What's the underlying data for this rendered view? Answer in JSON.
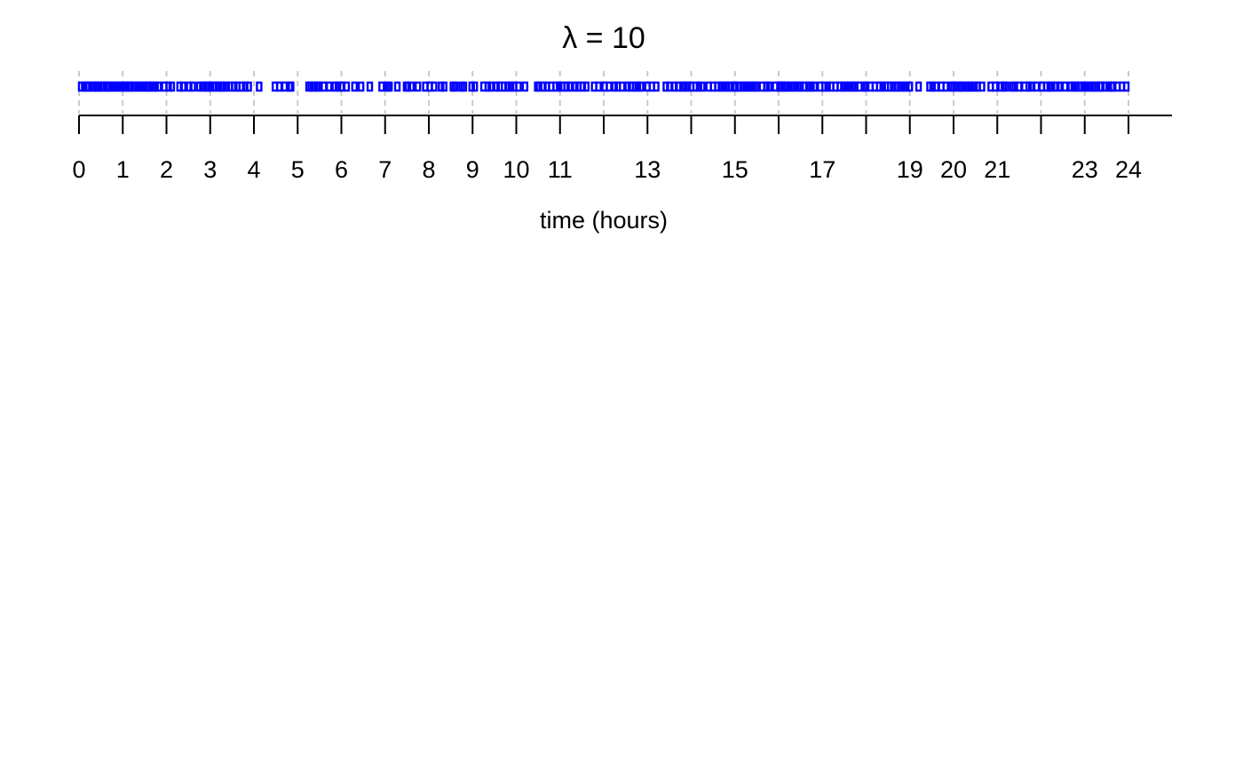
{
  "chart_data": {
    "type": "scatter",
    "title": "λ = 10",
    "xlabel": "time (hours)",
    "xlim": [
      0,
      25
    ],
    "tick_values": [
      0,
      1,
      2,
      3,
      4,
      5,
      6,
      7,
      8,
      9,
      10,
      11,
      12,
      13,
      14,
      15,
      16,
      17,
      18,
      19,
      20,
      21,
      22,
      23,
      24
    ],
    "tick_labels": [
      "0",
      "1",
      "2",
      "3",
      "4",
      "5",
      "6",
      "7",
      "8",
      "9",
      "10",
      "11",
      "",
      "13",
      "",
      "15",
      "",
      "17",
      "",
      "19",
      "20",
      "21",
      "",
      "23",
      "24"
    ],
    "vertical_gridlines": true,
    "marker_color": "#0000ff",
    "series": [
      {
        "x": [
          0.05,
          0.12,
          0.18,
          0.22,
          0.3,
          0.35,
          0.4,
          0.44,
          0.52,
          0.57,
          0.63,
          0.68,
          0.75,
          0.82,
          0.88,
          0.95,
          1.02,
          1.08,
          1.15,
          1.2,
          1.28,
          1.35,
          1.42,
          1.48,
          1.55,
          1.6,
          1.68,
          1.75,
          1.82,
          1.95,
          2.05,
          2.12,
          2.3,
          2.38,
          2.52,
          2.6,
          2.75,
          2.82,
          2.9,
          2.95,
          3.02,
          3.1,
          3.18,
          3.25,
          3.3,
          3.38,
          3.45,
          3.55,
          3.62,
          3.72,
          3.8,
          3.88,
          4.12,
          4.48,
          4.58,
          4.7,
          4.82,
          4.85,
          5.25,
          5.3,
          5.38,
          5.45,
          5.5,
          5.6,
          5.72,
          5.85,
          5.92,
          6.0,
          6.12,
          6.3,
          6.45,
          6.65,
          6.92,
          7.05,
          7.1,
          7.28,
          7.48,
          7.52,
          7.6,
          7.75,
          7.92,
          8.02,
          8.12,
          8.28,
          8.35,
          8.55,
          8.6,
          8.75,
          8.8,
          8.98,
          9.05,
          9.25,
          9.35,
          9.42,
          9.55,
          9.62,
          9.72,
          9.8,
          9.88,
          9.95,
          10.05,
          10.2,
          10.48,
          10.52,
          10.62,
          10.7,
          10.8,
          10.9,
          10.98,
          11.05,
          11.15,
          11.22,
          11.35,
          11.42,
          11.52,
          11.6,
          11.78,
          11.88,
          12.02,
          12.12,
          12.25,
          12.32,
          12.42,
          12.55,
          12.62,
          12.72,
          12.78,
          12.85,
          13.0,
          13.1,
          13.2,
          13.42,
          13.5,
          13.62,
          13.7,
          13.8,
          13.85,
          13.92,
          14.0,
          14.1,
          14.18,
          14.25,
          14.4,
          14.5,
          14.6,
          14.68,
          14.75,
          14.82,
          14.9,
          14.98,
          15.02,
          15.1,
          15.18,
          15.25,
          15.32,
          15.38,
          15.45,
          15.5,
          15.62,
          15.72,
          15.78,
          15.92,
          16.02,
          16.05,
          16.1,
          16.15,
          16.2,
          16.3,
          16.35,
          16.45,
          16.5,
          16.6,
          16.68,
          16.75,
          16.82,
          16.95,
          17.05,
          17.12,
          17.2,
          17.3,
          17.4,
          17.48,
          17.55,
          17.62,
          17.7,
          17.75,
          17.85,
          17.95,
          18.0,
          18.1,
          18.2,
          18.3,
          18.38,
          18.45,
          18.55,
          18.62,
          18.7,
          18.78,
          18.85,
          18.92,
          19.0,
          19.2,
          19.45,
          19.52,
          19.6,
          19.72,
          19.82,
          19.95,
          20.0,
          20.1,
          20.15,
          20.2,
          20.3,
          20.35,
          20.4,
          20.48,
          20.55,
          20.65,
          20.85,
          20.95,
          21.08,
          21.15,
          21.2,
          21.35,
          21.4,
          21.5,
          21.62,
          21.72,
          21.78,
          21.9,
          22.02,
          22.12,
          22.2,
          22.25,
          22.35,
          22.42,
          22.55,
          22.68,
          22.75,
          22.82,
          22.9,
          22.98,
          23.05,
          23.12,
          23.2,
          23.25,
          23.35,
          23.38,
          23.48,
          23.55,
          23.62,
          23.65,
          23.75,
          23.85,
          23.95
        ]
      }
    ]
  }
}
